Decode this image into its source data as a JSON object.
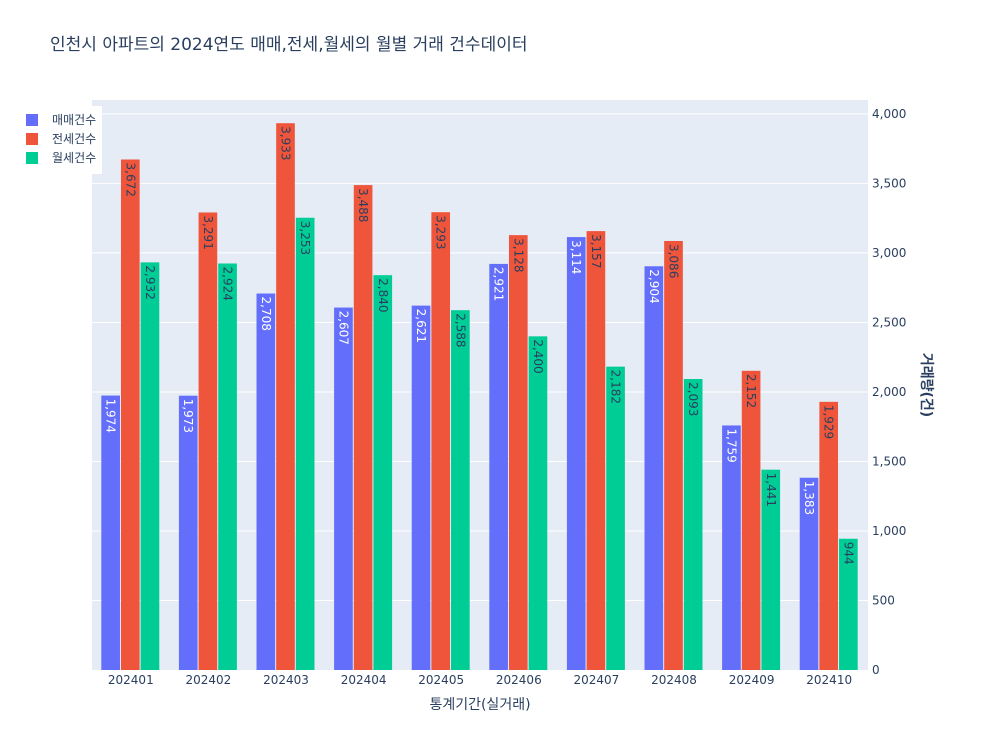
{
  "chart_data": {
    "type": "bar",
    "title": "인천시 아파트의 2024연도 매매,전세,월세의 월별 거래 건수데이터",
    "xlabel": "통계기간(실거래)",
    "ylabel": "거래량(건)",
    "categories": [
      "202401",
      "202402",
      "202403",
      "202404",
      "202405",
      "202406",
      "202407",
      "202408",
      "202409",
      "202410"
    ],
    "series": [
      {
        "name": "매매건수",
        "color": "#636efa",
        "label_color": "#ffffff",
        "values": [
          1974,
          1973,
          2708,
          2607,
          2621,
          2921,
          3114,
          2904,
          1759,
          1383
        ]
      },
      {
        "name": "전세건수",
        "color": "#ef553b",
        "label_color": "#2a3f5f",
        "values": [
          3672,
          3291,
          3933,
          3488,
          3293,
          3128,
          3157,
          3086,
          2152,
          1929
        ]
      },
      {
        "name": "월세건수",
        "color": "#00cc96",
        "label_color": "#2a3f5f",
        "values": [
          2932,
          2924,
          3253,
          2840,
          2588,
          2400,
          2182,
          2093,
          1441,
          944
        ]
      }
    ],
    "ylim": [
      0,
      4100
    ],
    "yticks": [
      0,
      500,
      1000,
      1500,
      2000,
      2500,
      3000,
      3500,
      4000
    ],
    "ytick_labels": [
      "0",
      "500",
      "1,000",
      "1,500",
      "2,000",
      "2,500",
      "3,000",
      "3,500",
      "4,000"
    ],
    "y_axis_side": "right",
    "grid": true,
    "legend_position": "top-left",
    "plot_bg": "#e5ecf6",
    "grid_color": "#ffffff"
  }
}
